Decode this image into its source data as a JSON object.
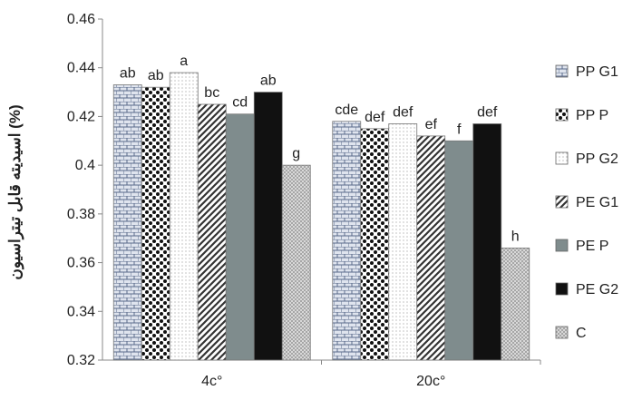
{
  "chart_data": {
    "type": "bar",
    "title": "",
    "xlabel": "",
    "ylabel": "اسیدیته قابل تیتراسیون (%)",
    "ylim": [
      0.32,
      0.46
    ],
    "yticks": [
      "0.46",
      "0.44",
      "0.42",
      "0.4",
      "0.38",
      "0.36",
      "0.34",
      "0.32"
    ],
    "categories": [
      "4c°",
      "20c°"
    ],
    "grid": false,
    "legend_position": "right",
    "series": [
      {
        "name": "PP G1",
        "values": [
          0.433,
          0.418
        ],
        "labels": [
          "ab",
          "cde"
        ],
        "pattern": "brick",
        "color": "#8e9bbd"
      },
      {
        "name": "PP P",
        "values": [
          0.432,
          0.415
        ],
        "labels": [
          "ab",
          "def"
        ],
        "pattern": "checker",
        "color": "#1a1a1a"
      },
      {
        "name": "PP G2",
        "values": [
          0.438,
          0.417
        ],
        "labels": [
          "a",
          "def"
        ],
        "pattern": "dots",
        "color": "#cfd8b0"
      },
      {
        "name": "PE G1",
        "values": [
          0.425,
          0.412
        ],
        "labels": [
          "bc",
          "ef"
        ],
        "pattern": "diagonal",
        "color": "#444444"
      },
      {
        "name": "PE P",
        "values": [
          0.421,
          0.41
        ],
        "labels": [
          "cd",
          "f"
        ],
        "pattern": "solid",
        "color": "#7f8c8d"
      },
      {
        "name": "PE G2",
        "values": [
          0.43,
          0.417
        ],
        "labels": [
          "ab",
          "def"
        ],
        "pattern": "solid",
        "color": "#111111"
      },
      {
        "name": "C",
        "values": [
          0.4,
          0.366
        ],
        "labels": [
          "g",
          "h"
        ],
        "pattern": "crosshatch",
        "color": "#b8b8b8"
      }
    ]
  }
}
